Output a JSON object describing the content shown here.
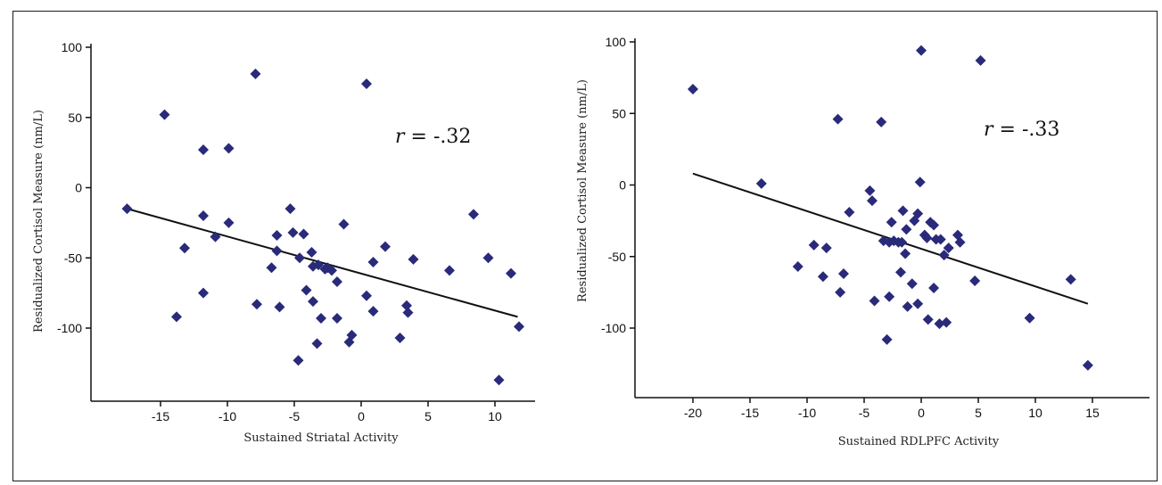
{
  "chart_data": [
    {
      "type": "scatter",
      "xlabel": "Sustained Striatal Activity",
      "ylabel": "Residualized Cortisol Measure (nm/L)",
      "annotation": "r = -.32",
      "annotation_var": "r",
      "annotation_val": " = -.32",
      "xlim": [
        -19,
        13
      ],
      "ylim": [
        -150,
        100
      ],
      "xticks": [
        -15,
        -10,
        -5,
        0,
        5,
        10
      ],
      "yticks": [
        100,
        50,
        0,
        -50,
        -100
      ],
      "marker_color": "#2a2a7a",
      "trendline": {
        "x": [
          -17.5,
          11.7
        ],
        "y": [
          -15,
          -92
        ]
      },
      "points": [
        {
          "x": -17.5,
          "y": -15
        },
        {
          "x": -14.7,
          "y": 52
        },
        {
          "x": -13.8,
          "y": -92
        },
        {
          "x": -13.2,
          "y": -43
        },
        {
          "x": -11.8,
          "y": 27
        },
        {
          "x": -11.8,
          "y": -20
        },
        {
          "x": -11.8,
          "y": -75
        },
        {
          "x": -10.9,
          "y": -35
        },
        {
          "x": -9.9,
          "y": 28
        },
        {
          "x": -9.9,
          "y": -25
        },
        {
          "x": -7.9,
          "y": 81
        },
        {
          "x": -7.8,
          "y": -83
        },
        {
          "x": -6.7,
          "y": -57
        },
        {
          "x": -6.3,
          "y": -45
        },
        {
          "x": -6.3,
          "y": -34
        },
        {
          "x": -6.1,
          "y": -85
        },
        {
          "x": -5.3,
          "y": -15
        },
        {
          "x": -5.1,
          "y": -32
        },
        {
          "x": -4.7,
          "y": -123
        },
        {
          "x": -4.6,
          "y": -50
        },
        {
          "x": -4.3,
          "y": -33
        },
        {
          "x": -4.1,
          "y": -73
        },
        {
          "x": -3.7,
          "y": -46
        },
        {
          "x": -3.6,
          "y": -56
        },
        {
          "x": -3.6,
          "y": -81
        },
        {
          "x": -3.3,
          "y": -111
        },
        {
          "x": -3.2,
          "y": -55
        },
        {
          "x": -3.0,
          "y": -93
        },
        {
          "x": -2.7,
          "y": -58
        },
        {
          "x": -2.5,
          "y": -57
        },
        {
          "x": -2.2,
          "y": -59
        },
        {
          "x": -1.8,
          "y": -93
        },
        {
          "x": -1.8,
          "y": -67
        },
        {
          "x": -1.3,
          "y": -26
        },
        {
          "x": -0.9,
          "y": -110
        },
        {
          "x": -0.7,
          "y": -105
        },
        {
          "x": 0.4,
          "y": 74
        },
        {
          "x": 0.4,
          "y": -77
        },
        {
          "x": 0.9,
          "y": -53
        },
        {
          "x": 0.9,
          "y": -88
        },
        {
          "x": 1.8,
          "y": -42
        },
        {
          "x": 2.9,
          "y": -107
        },
        {
          "x": 3.4,
          "y": -84
        },
        {
          "x": 3.5,
          "y": -89
        },
        {
          "x": 3.9,
          "y": -51
        },
        {
          "x": 6.6,
          "y": -59
        },
        {
          "x": 8.4,
          "y": -19
        },
        {
          "x": 9.5,
          "y": -50
        },
        {
          "x": 10.3,
          "y": -137
        },
        {
          "x": 11.2,
          "y": -61
        },
        {
          "x": 11.8,
          "y": -99
        }
      ]
    },
    {
      "type": "scatter",
      "xlabel": "Sustained RDLPFC Activity",
      "ylabel": "Residualized Cortisol Measure (nm/L)",
      "annotation": "r = -.33",
      "annotation_var": "r",
      "annotation_val": " = -.33",
      "xlim": [
        -25,
        20
      ],
      "ylim": [
        -150,
        100
      ],
      "xticks": [
        -20,
        -15,
        -10,
        -5,
        0,
        5,
        10,
        15
      ],
      "yticks": [
        100,
        50,
        0,
        -50,
        -100
      ],
      "marker_color": "#2a2a7a",
      "trendline": {
        "x": [
          -20,
          14.6
        ],
        "y": [
          8,
          -83
        ]
      },
      "points": [
        {
          "x": -20,
          "y": 67
        },
        {
          "x": -14,
          "y": 1
        },
        {
          "x": -10.8,
          "y": -57
        },
        {
          "x": -9.4,
          "y": -42
        },
        {
          "x": -8.6,
          "y": -64
        },
        {
          "x": -8.3,
          "y": -44
        },
        {
          "x": -7.3,
          "y": 46
        },
        {
          "x": -7.1,
          "y": -75
        },
        {
          "x": -6.8,
          "y": -62
        },
        {
          "x": -6.3,
          "y": -19
        },
        {
          "x": -4.5,
          "y": -4
        },
        {
          "x": -4.3,
          "y": -11
        },
        {
          "x": -4.1,
          "y": -81
        },
        {
          "x": -3.5,
          "y": 44
        },
        {
          "x": -3.3,
          "y": -39
        },
        {
          "x": -3.0,
          "y": -108
        },
        {
          "x": -2.8,
          "y": -78
        },
        {
          "x": -2.8,
          "y": -40
        },
        {
          "x": -2.6,
          "y": -26
        },
        {
          "x": -2.4,
          "y": -39
        },
        {
          "x": -2.0,
          "y": -40
        },
        {
          "x": -1.8,
          "y": -61
        },
        {
          "x": -1.7,
          "y": -40
        },
        {
          "x": -1.6,
          "y": -18
        },
        {
          "x": -1.4,
          "y": -48
        },
        {
          "x": -1.3,
          "y": -31
        },
        {
          "x": -1.2,
          "y": -85
        },
        {
          "x": -0.8,
          "y": -69
        },
        {
          "x": -0.6,
          "y": -25
        },
        {
          "x": -0.3,
          "y": -20
        },
        {
          "x": -0.3,
          "y": -83
        },
        {
          "x": -0.1,
          "y": 2
        },
        {
          "x": 0.0,
          "y": 94
        },
        {
          "x": 0.3,
          "y": -35
        },
        {
          "x": 0.5,
          "y": -37
        },
        {
          "x": 0.6,
          "y": -94
        },
        {
          "x": 0.8,
          "y": -26
        },
        {
          "x": 1.1,
          "y": -28
        },
        {
          "x": 1.1,
          "y": -72
        },
        {
          "x": 1.3,
          "y": -38
        },
        {
          "x": 1.6,
          "y": -97
        },
        {
          "x": 1.7,
          "y": -38
        },
        {
          "x": 2.0,
          "y": -49
        },
        {
          "x": 2.2,
          "y": -96
        },
        {
          "x": 2.4,
          "y": -44
        },
        {
          "x": 3.2,
          "y": -35
        },
        {
          "x": 3.4,
          "y": -40
        },
        {
          "x": 4.7,
          "y": -67
        },
        {
          "x": 5.2,
          "y": 87
        },
        {
          "x": 9.5,
          "y": -93
        },
        {
          "x": 13.1,
          "y": -66
        },
        {
          "x": 14.6,
          "y": -126
        }
      ]
    }
  ]
}
